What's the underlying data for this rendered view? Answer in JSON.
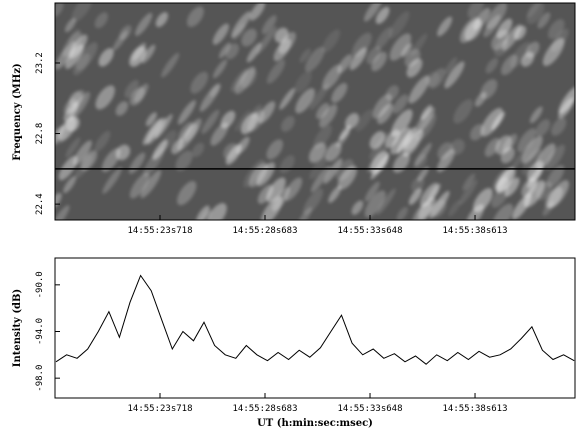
{
  "chart_data": [
    {
      "type": "spectrogram",
      "ylabel": "Frequency (MHz)",
      "xlim": [
        18.753,
        43.34
      ],
      "xticks": [
        {
          "value": 23.718,
          "label": "14:55:23s718"
        },
        {
          "value": 28.683,
          "label": "14:55:28s683"
        },
        {
          "value": 33.648,
          "label": "14:55:33s648"
        },
        {
          "value": 38.613,
          "label": "14:55:38s613"
        }
      ],
      "ylim": [
        22.31,
        23.54
      ],
      "yticks": [
        22.4,
        22.8,
        23.2
      ],
      "marker_y": 22.6
    },
    {
      "type": "line",
      "ylabel": "Intensity (dB)",
      "xlabel": "UT (h:min:sec:msec)",
      "color": "#000000",
      "xlim": [
        18.753,
        43.34
      ],
      "xticks": [
        {
          "value": 23.718,
          "label": "14:55:23s718"
        },
        {
          "value": 28.683,
          "label": "14:55:28s683"
        },
        {
          "value": 33.648,
          "label": "14:55:33s648"
        },
        {
          "value": 38.613,
          "label": "14:55:38s613"
        }
      ],
      "ylim": [
        -99.7,
        -87.7
      ],
      "yticks": [
        {
          "value": -98,
          "label": "-98.0"
        },
        {
          "value": -94,
          "label": "-94.0"
        },
        {
          "value": -90,
          "label": "-90.0"
        }
      ],
      "x": [
        18.8,
        19.3,
        19.8,
        20.3,
        20.8,
        21.3,
        21.8,
        22.3,
        22.8,
        23.3,
        23.8,
        24.3,
        24.8,
        25.3,
        25.8,
        26.3,
        26.8,
        27.3,
        27.8,
        28.3,
        28.8,
        29.3,
        29.8,
        30.3,
        30.8,
        31.3,
        31.8,
        32.3,
        32.8,
        33.3,
        33.8,
        34.3,
        34.8,
        35.3,
        35.8,
        36.3,
        36.8,
        37.3,
        37.8,
        38.3,
        38.8,
        39.3,
        39.8,
        40.3,
        40.8,
        41.3,
        41.8,
        42.3,
        42.8,
        43.3
      ],
      "values": [
        -96.6,
        -96.0,
        -96.3,
        -95.5,
        -94.0,
        -92.3,
        -94.5,
        -91.5,
        -89.2,
        -90.5,
        -93.0,
        -95.5,
        -94.0,
        -94.8,
        -93.2,
        -95.2,
        -96.0,
        -96.3,
        -95.2,
        -96.0,
        -96.5,
        -95.8,
        -96.4,
        -95.6,
        -96.2,
        -95.4,
        -94.0,
        -92.6,
        -95.0,
        -96.0,
        -95.5,
        -96.3,
        -95.9,
        -96.6,
        -96.1,
        -96.8,
        -96.0,
        -96.5,
        -95.8,
        -96.4,
        -95.7,
        -96.2,
        -96.0,
        -95.5,
        -94.6,
        -93.6,
        -95.6,
        -96.4,
        -96.0,
        -96.5
      ]
    }
  ]
}
